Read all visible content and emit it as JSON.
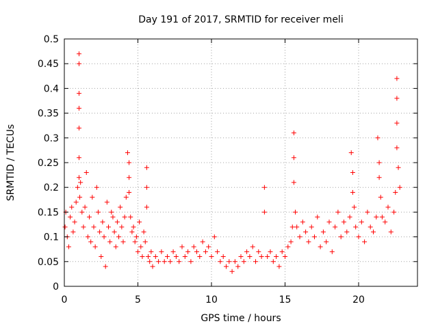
{
  "chart_data": {
    "type": "scatter",
    "title": "Day 191 of 2017, SRMTID for receiver meli",
    "xlabel": "GPS time / hours",
    "ylabel": "SRMTID / TECUs",
    "xlim": [
      0,
      24
    ],
    "ylim": [
      0,
      0.5
    ],
    "xticks": [
      "0",
      "5",
      "10",
      "15",
      "20"
    ],
    "xtick_values": [
      0,
      5,
      10,
      15,
      20
    ],
    "yticks": [
      "0",
      "0.05",
      "0.1",
      "0.15",
      "0.2",
      "0.25",
      "0.3",
      "0.35",
      "0.4",
      "0.45",
      "0.5"
    ],
    "ytick_values": [
      0,
      0.05,
      0.1,
      0.15,
      0.2,
      0.25,
      0.3,
      0.35,
      0.4,
      0.45,
      0.5
    ],
    "grid": true,
    "marker": "plus",
    "color": "#ff0000",
    "series": [
      {
        "x": [
          0.05,
          0.1,
          0.2,
          0.3,
          0.4,
          0.5,
          0.6,
          0.7,
          0.8,
          0.9,
          1.0,
          1.0,
          1.0,
          1.0,
          1.0,
          1.0,
          1.0,
          1.05,
          1.1,
          1.2,
          1.3,
          1.4,
          1.5,
          1.6,
          1.7,
          1.8,
          1.9,
          2.0,
          2.1,
          2.2,
          2.3,
          2.4,
          2.5,
          2.6,
          2.7,
          2.8,
          2.9,
          3.0,
          3.1,
          3.2,
          3.3,
          3.4,
          3.5,
          3.6,
          3.7,
          3.8,
          3.9,
          4.0,
          4.1,
          4.2,
          4.3,
          4.4,
          4.4,
          4.4,
          4.5,
          4.6,
          4.7,
          4.8,
          4.9,
          5.0,
          5.1,
          5.2,
          5.3,
          5.4,
          5.5,
          5.6,
          5.6,
          5.6,
          5.7,
          5.8,
          5.9,
          6.0,
          6.2,
          6.4,
          6.6,
          6.8,
          7.0,
          7.2,
          7.4,
          7.6,
          7.8,
          8.0,
          8.2,
          8.4,
          8.6,
          8.8,
          9.0,
          9.2,
          9.4,
          9.6,
          9.8,
          10.0,
          10.2,
          10.4,
          10.6,
          10.8,
          11.0,
          11.2,
          11.4,
          11.6,
          11.8,
          12.0,
          12.2,
          12.4,
          12.6,
          12.8,
          13.0,
          13.2,
          13.4,
          13.6,
          13.6,
          13.8,
          14.0,
          14.2,
          14.4,
          14.6,
          14.8,
          15.0,
          15.2,
          15.4,
          15.5,
          15.6,
          15.6,
          15.6,
          15.7,
          15.8,
          16.0,
          16.2,
          16.4,
          16.6,
          16.8,
          17.0,
          17.2,
          17.4,
          17.6,
          17.8,
          18.0,
          18.2,
          18.4,
          18.6,
          18.8,
          19.0,
          19.2,
          19.4,
          19.5,
          19.6,
          19.6,
          19.7,
          19.8,
          20.0,
          20.2,
          20.4,
          20.6,
          20.8,
          21.0,
          21.2,
          21.3,
          21.4,
          21.4,
          21.5,
          21.6,
          21.8,
          22.0,
          22.2,
          22.4,
          22.5,
          22.6,
          22.6,
          22.6,
          22.6,
          22.7,
          22.8
        ],
        "y": [
          0.12,
          0.15,
          0.1,
          0.08,
          0.14,
          0.16,
          0.11,
          0.13,
          0.17,
          0.2,
          0.47,
          0.45,
          0.39,
          0.36,
          0.32,
          0.26,
          0.22,
          0.18,
          0.21,
          0.15,
          0.12,
          0.16,
          0.23,
          0.1,
          0.14,
          0.09,
          0.18,
          0.12,
          0.08,
          0.2,
          0.15,
          0.11,
          0.06,
          0.13,
          0.1,
          0.04,
          0.17,
          0.12,
          0.09,
          0.15,
          0.14,
          0.11,
          0.08,
          0.13,
          0.1,
          0.16,
          0.12,
          0.09,
          0.14,
          0.18,
          0.27,
          0.25,
          0.22,
          0.19,
          0.14,
          0.11,
          0.12,
          0.09,
          0.1,
          0.07,
          0.13,
          0.08,
          0.06,
          0.11,
          0.09,
          0.24,
          0.2,
          0.16,
          0.06,
          0.05,
          0.07,
          0.04,
          0.06,
          0.05,
          0.07,
          0.05,
          0.06,
          0.05,
          0.07,
          0.06,
          0.05,
          0.08,
          0.06,
          0.07,
          0.05,
          0.08,
          0.07,
          0.06,
          0.09,
          0.07,
          0.08,
          0.06,
          0.1,
          0.07,
          0.05,
          0.06,
          0.04,
          0.05,
          0.03,
          0.05,
          0.04,
          0.06,
          0.05,
          0.07,
          0.06,
          0.08,
          0.05,
          0.07,
          0.06,
          0.2,
          0.15,
          0.06,
          0.07,
          0.05,
          0.06,
          0.04,
          0.07,
          0.06,
          0.08,
          0.09,
          0.12,
          0.31,
          0.26,
          0.21,
          0.15,
          0.12,
          0.1,
          0.13,
          0.11,
          0.09,
          0.12,
          0.1,
          0.14,
          0.08,
          0.11,
          0.09,
          0.13,
          0.07,
          0.12,
          0.15,
          0.1,
          0.13,
          0.11,
          0.14,
          0.27,
          0.23,
          0.19,
          0.16,
          0.12,
          0.1,
          0.13,
          0.09,
          0.15,
          0.12,
          0.11,
          0.14,
          0.3,
          0.25,
          0.22,
          0.18,
          0.14,
          0.13,
          0.16,
          0.11,
          0.15,
          0.19,
          0.42,
          0.38,
          0.33,
          0.28,
          0.24,
          0.2
        ]
      }
    ]
  }
}
